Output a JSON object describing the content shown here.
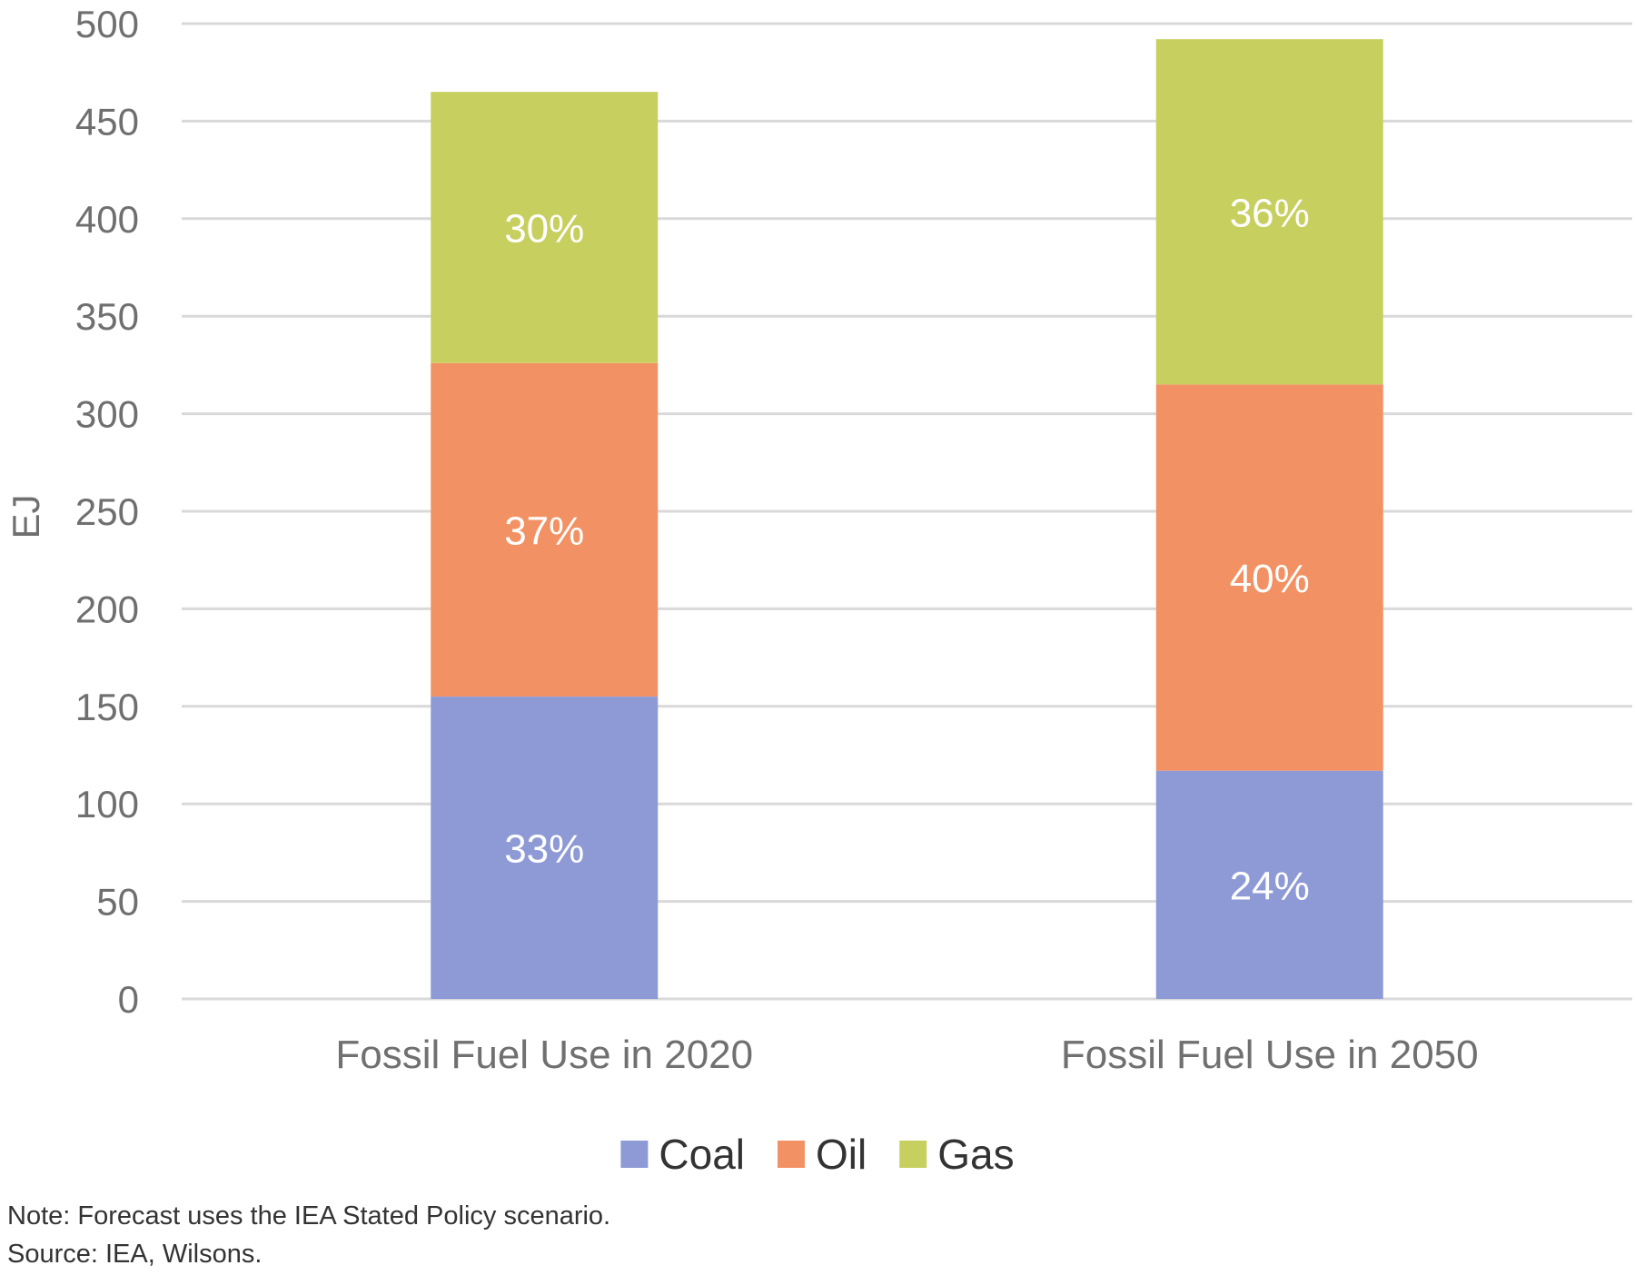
{
  "chart_data": {
    "type": "bar",
    "stacked": true,
    "categories": [
      "Fossil Fuel Use in 2020",
      "Fossil Fuel Use in 2050"
    ],
    "series": [
      {
        "name": "Coal",
        "color": "#8e9ad5",
        "values": [
          155,
          117
        ],
        "labels": [
          "33%",
          "24%"
        ]
      },
      {
        "name": "Oil",
        "color": "#f29264",
        "values": [
          171,
          198
        ],
        "labels": [
          "37%",
          "40%"
        ]
      },
      {
        "name": "Gas",
        "color": "#c7cf5f",
        "values": [
          139,
          177
        ],
        "labels": [
          "30%",
          "36%"
        ]
      }
    ],
    "ylabel": "EJ",
    "ylim": [
      0,
      500
    ],
    "yticks": [
      0,
      50,
      100,
      150,
      200,
      250,
      300,
      350,
      400,
      450,
      500
    ],
    "grid": true,
    "legend_position": "bottom"
  },
  "notes": {
    "note": "Note: Forecast uses the IEA Stated Policy scenario.",
    "source": "Source: IEA, Wilsons."
  }
}
